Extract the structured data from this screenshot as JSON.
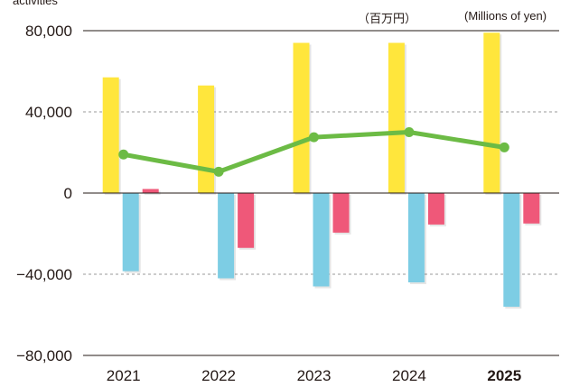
{
  "units": {
    "jp": "（百万円）",
    "en": "(Millions of yen)"
  },
  "cut_label": "activities",
  "colors": {
    "operating": "#ffe63c",
    "investing": "#7dcde4",
    "financing": "#ef5879",
    "line": "#6cbb45",
    "axis": "#231815",
    "grid": "#9a9a9a"
  },
  "chart_data": {
    "type": "bar",
    "categories": [
      "2021",
      "2022",
      "2023",
      "2024",
      "2025"
    ],
    "highlight_category": "2025",
    "series": [
      {
        "key": "operating",
        "type": "bar",
        "values": [
          57000,
          53000,
          74000,
          74000,
          79000
        ]
      },
      {
        "key": "investing",
        "type": "bar",
        "values": [
          -38500,
          -42000,
          -46000,
          -44000,
          -56000
        ]
      },
      {
        "key": "financing",
        "type": "bar",
        "values": [
          2000,
          -27000,
          -19500,
          -15500,
          -15000
        ]
      },
      {
        "key": "line",
        "type": "line",
        "values": [
          19000,
          10500,
          27500,
          30000,
          22500
        ]
      }
    ],
    "yticks": [
      80000,
      40000,
      0,
      -40000,
      -80000
    ],
    "ytick_labels": [
      "80,000",
      "40,000",
      "0",
      "−40,000",
      "−80,000"
    ],
    "ylim": [
      -80000,
      80000
    ],
    "grid": true
  }
}
